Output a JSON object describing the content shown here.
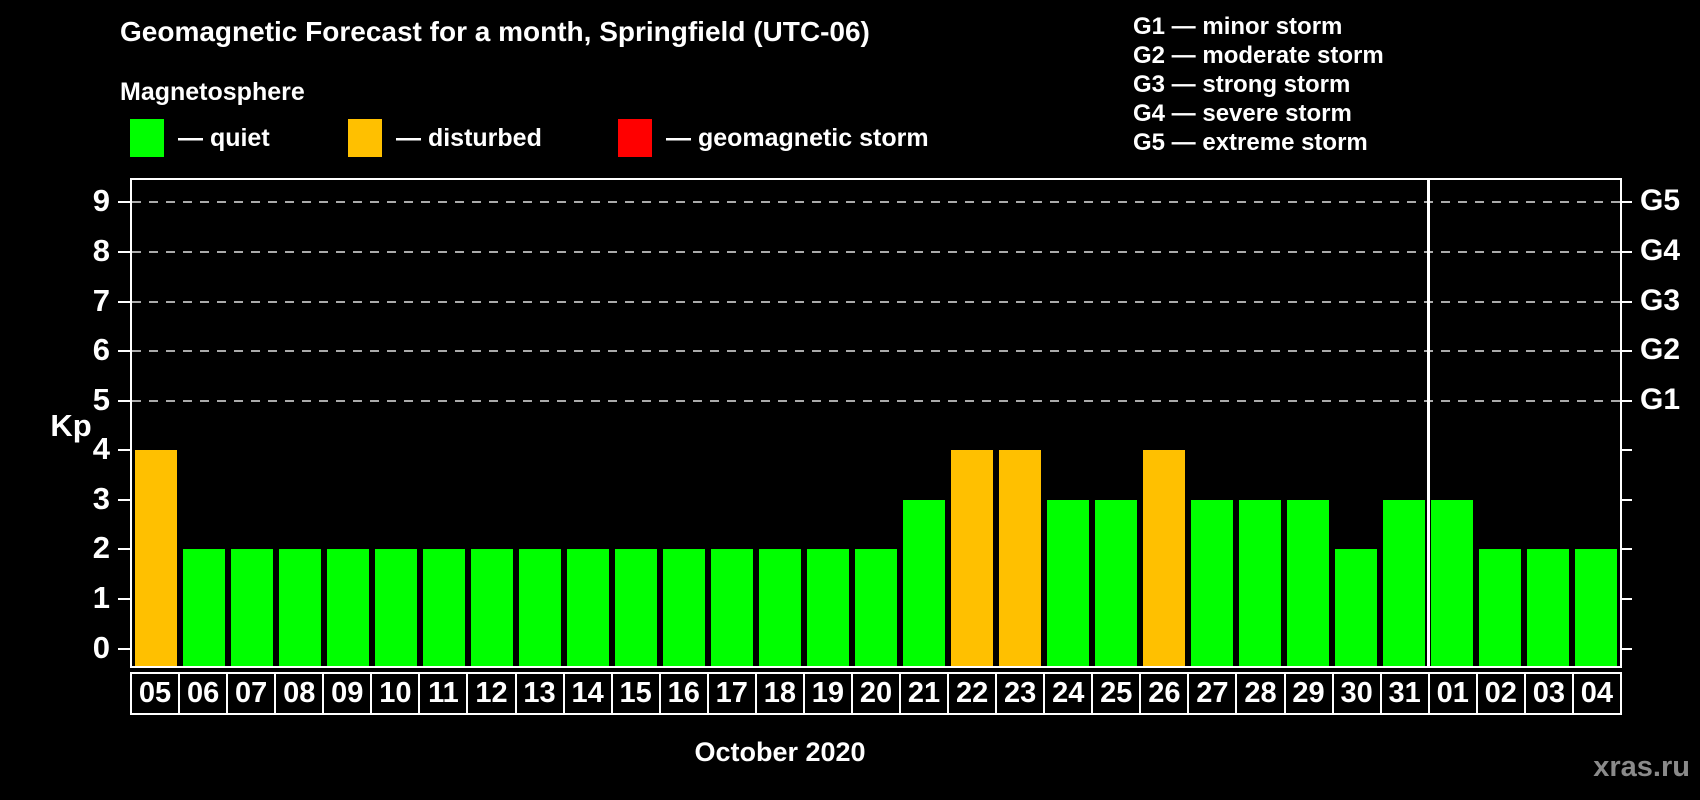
{
  "header": {
    "title": "Geomagnetic Forecast for a month, Springfield (UTC-06)",
    "subtitle": "Magnetosphere",
    "legend": [
      {
        "label": "— quiet",
        "status": "quiet",
        "color": "#00ff00"
      },
      {
        "label": "— disturbed",
        "status": "disturbed",
        "color": "#ffc000"
      },
      {
        "label": "— geomagnetic storm",
        "status": "storm",
        "color": "#ff0000"
      }
    ],
    "g_scale": [
      "G1 — minor storm",
      "G2 — moderate storm",
      "G3 — strong storm",
      "G4 — severe storm",
      "G5 — extreme storm"
    ]
  },
  "chart_data": {
    "type": "bar",
    "title": "Geomagnetic Forecast for a month, Springfield (UTC-06)",
    "ylabel": "Kp",
    "xlabel": "October 2020",
    "ylim": [
      0,
      9
    ],
    "yticks": [
      0,
      1,
      2,
      3,
      4,
      5,
      6,
      7,
      8,
      9
    ],
    "grid_kp": [
      5,
      6,
      7,
      8,
      9
    ],
    "grid": "dashed",
    "legend_position": "top-left",
    "right_axis": [
      {
        "kp": 5,
        "label": "G1"
      },
      {
        "kp": 6,
        "label": "G2"
      },
      {
        "kp": 7,
        "label": "G3"
      },
      {
        "kp": 8,
        "label": "G4"
      },
      {
        "kp": 9,
        "label": "G5"
      }
    ],
    "categories": [
      "05",
      "06",
      "07",
      "08",
      "09",
      "10",
      "11",
      "12",
      "13",
      "14",
      "15",
      "16",
      "17",
      "18",
      "19",
      "20",
      "21",
      "22",
      "23",
      "24",
      "25",
      "26",
      "27",
      "28",
      "29",
      "30",
      "31",
      "01",
      "02",
      "03",
      "04"
    ],
    "values": [
      4,
      2,
      2,
      2,
      2,
      2,
      2,
      2,
      2,
      2,
      2,
      2,
      2,
      2,
      2,
      2,
      3,
      4,
      4,
      3,
      3,
      4,
      3,
      3,
      3,
      2,
      3,
      3,
      2,
      2,
      2
    ],
    "statuses": [
      "disturbed",
      "quiet",
      "quiet",
      "quiet",
      "quiet",
      "quiet",
      "quiet",
      "quiet",
      "quiet",
      "quiet",
      "quiet",
      "quiet",
      "quiet",
      "quiet",
      "quiet",
      "quiet",
      "quiet",
      "disturbed",
      "disturbed",
      "quiet",
      "quiet",
      "disturbed",
      "quiet",
      "quiet",
      "quiet",
      "quiet",
      "quiet",
      "quiet",
      "quiet",
      "quiet",
      "quiet"
    ],
    "status_colors": {
      "quiet": "#00ff00",
      "disturbed": "#ffc000",
      "storm": "#ff0000"
    },
    "month_boundary_after": "31"
  },
  "footer": {
    "month_label": "October 2020",
    "watermark": "xras.ru"
  }
}
